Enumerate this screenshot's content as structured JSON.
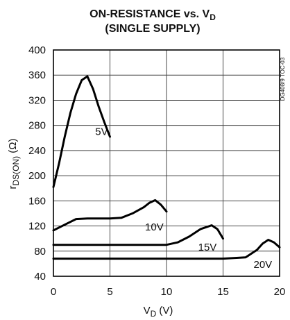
{
  "chart_data": {
    "type": "line",
    "title_line1": "ON-RESISTANCE vs. V",
    "title_sub": "D",
    "title_line2": "(SINGLE SUPPLY)",
    "ylabel_main": "r",
    "ylabel_sub": "DS(ON)",
    "ylabel_unit": " (Ω)",
    "xlabel_main": "V",
    "xlabel_sub": "D",
    "xlabel_unit": " (V)",
    "side_code": "DG408/9 TOC-03",
    "xlim": [
      0,
      20
    ],
    "ylim": [
      40,
      400
    ],
    "x_ticks": [
      "0",
      "5",
      "10",
      "15",
      "20"
    ],
    "y_ticks": [
      "40",
      "80",
      "120",
      "160",
      "200",
      "240",
      "280",
      "320",
      "360",
      "400"
    ],
    "grid": true,
    "series": [
      {
        "name": "5V",
        "label": "5V",
        "x": [
          0,
          0.5,
          1,
          1.5,
          2,
          2.5,
          3,
          3.5,
          4,
          4.5,
          5
        ],
        "y": [
          182,
          220,
          262,
          300,
          330,
          352,
          358,
          338,
          310,
          285,
          262
        ]
      },
      {
        "name": "10V",
        "label": "10V",
        "x": [
          0,
          1,
          2,
          3,
          4,
          5,
          6,
          7,
          8,
          8.5,
          9,
          9.5,
          10
        ],
        "y": [
          113,
          122,
          131,
          132,
          132,
          132,
          133,
          140,
          150,
          157,
          161,
          154,
          143
        ]
      },
      {
        "name": "15V",
        "label": "15V",
        "x": [
          0,
          2,
          4,
          6,
          8,
          10,
          11,
          12,
          13,
          14,
          14.5,
          15
        ],
        "y": [
          90,
          90,
          90,
          90,
          90,
          90,
          94,
          103,
          115,
          121,
          115,
          100
        ]
      },
      {
        "name": "20V",
        "label": "20V",
        "x": [
          0,
          4,
          8,
          12,
          15,
          17,
          18,
          18.5,
          19,
          19.5,
          20
        ],
        "y": [
          68,
          68,
          68,
          68,
          68,
          70,
          82,
          92,
          98,
          94,
          86
        ]
      }
    ]
  }
}
